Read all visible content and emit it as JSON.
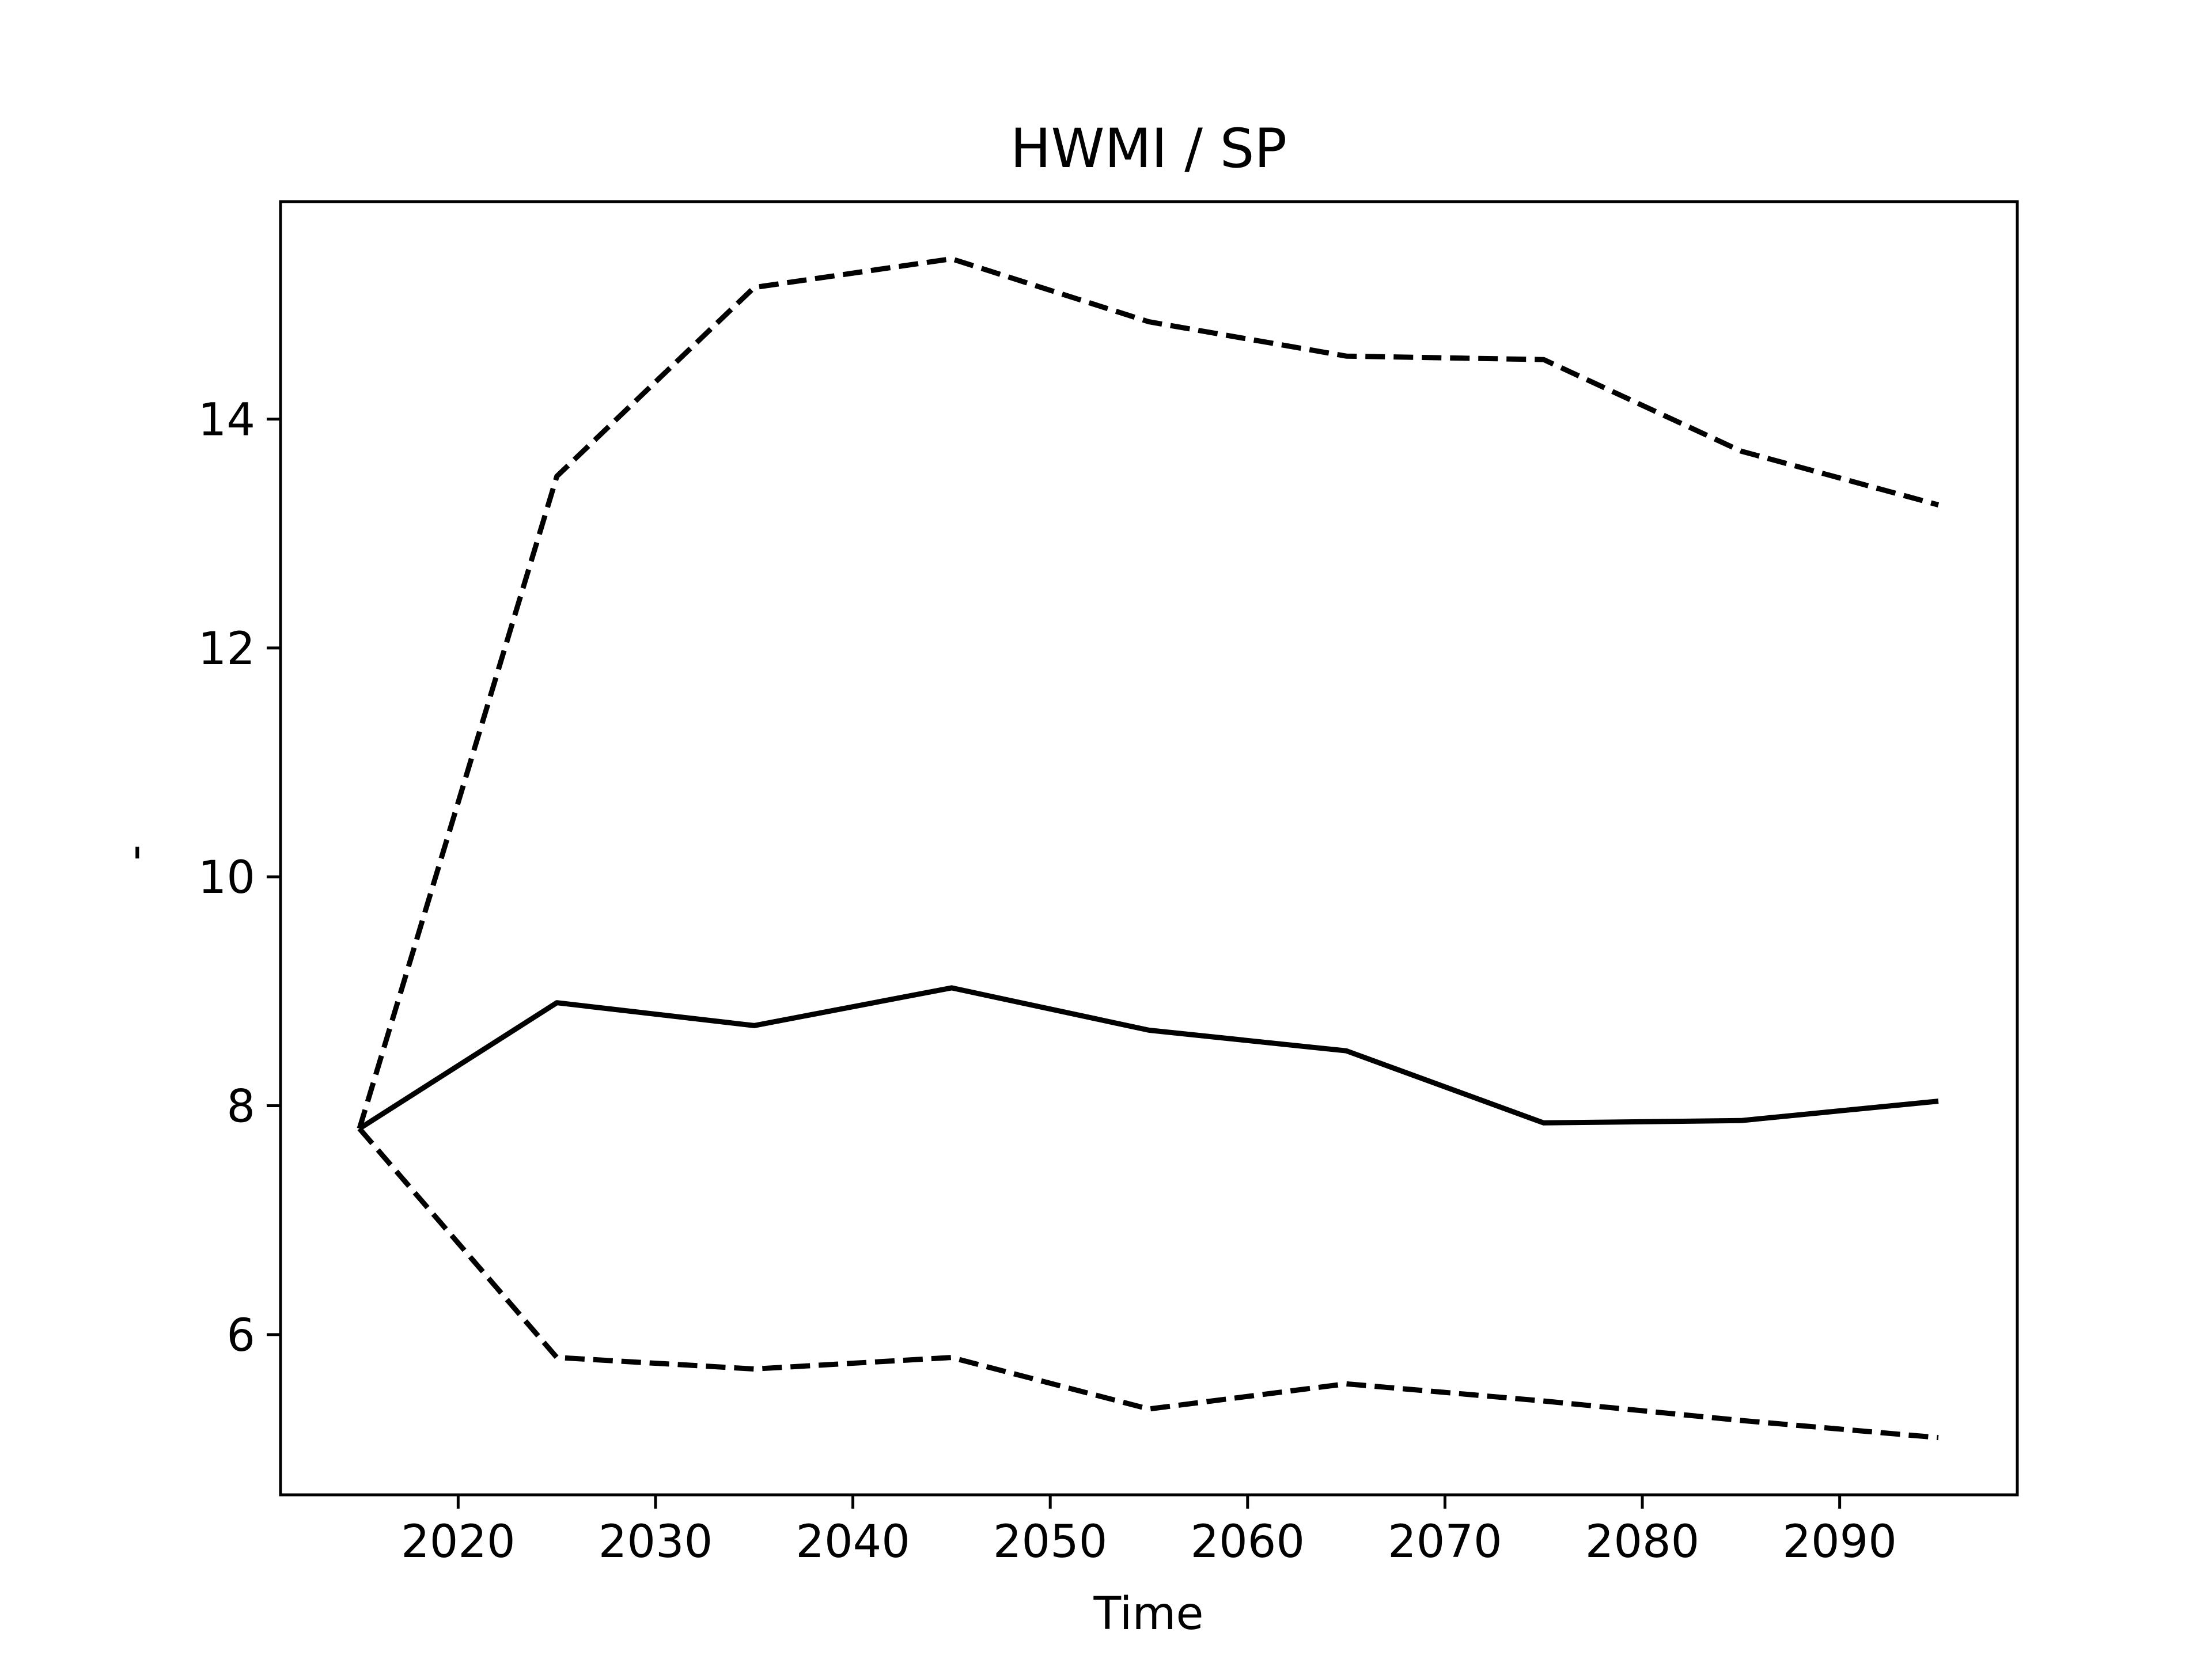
{
  "chart_data": {
    "type": "line",
    "title": "HWMI / SP",
    "xlabel": "Time",
    "ylabel": "-",
    "xlim": [
      2011,
      2099
    ],
    "ylim": [
      4.6,
      15.9
    ],
    "xticks": [
      2020,
      2030,
      2040,
      2050,
      2060,
      2070,
      2080,
      2090
    ],
    "yticks": [
      6,
      8,
      10,
      12,
      14
    ],
    "grid": false,
    "legend": "none",
    "x": [
      2015,
      2025,
      2035,
      2045,
      2055,
      2065,
      2075,
      2085,
      2095
    ],
    "series": [
      {
        "style": "dashed",
        "color": "#000000",
        "values": [
          7.8,
          13.5,
          15.15,
          15.4,
          14.85,
          14.55,
          14.52,
          13.72,
          13.25
        ]
      },
      {
        "style": "solid",
        "color": "#000000",
        "values": [
          7.8,
          8.9,
          8.7,
          9.03,
          8.66,
          8.48,
          7.85,
          7.87,
          8.04
        ]
      },
      {
        "style": "dashed",
        "color": "#000000",
        "values": [
          7.8,
          5.8,
          5.7,
          5.8,
          5.35,
          5.57,
          5.42,
          5.25,
          5.1
        ]
      }
    ]
  }
}
